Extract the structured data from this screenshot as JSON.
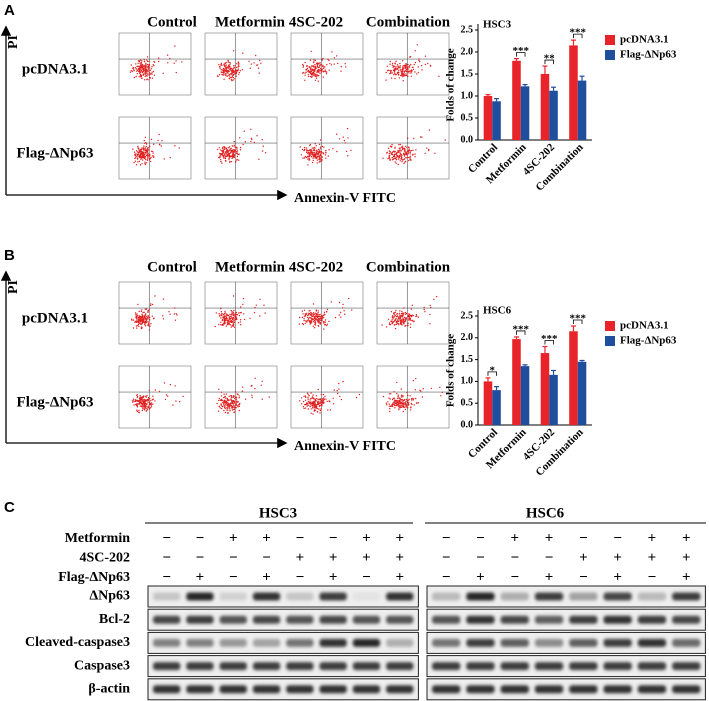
{
  "panels": [
    {
      "label": "A",
      "columns": [
        "Control",
        "Metformin",
        "4SC-202",
        "Combination"
      ],
      "rows": [
        "pcDNA3.1",
        "Flag-ΔNp63"
      ],
      "y_axis": "PI",
      "x_axis": "Annexin-V FITC"
    },
    {
      "label": "B",
      "columns": [
        "Control",
        "Metformin",
        "4SC-202",
        "Combination"
      ],
      "rows": [
        "pcDNA3.1",
        "Flag-ΔNp63"
      ],
      "y_axis": "PI",
      "x_axis": "Annexin-V FITC"
    }
  ],
  "chart_data": [
    {
      "type": "bar",
      "title": "HSC3",
      "ylabel": "Folds of change",
      "categories": [
        "Control",
        "Metformin",
        "4SC-202",
        "Combination"
      ],
      "series": [
        {
          "name": "pcDNA3.1",
          "color": "#e8242a",
          "values": [
            1.0,
            1.8,
            1.5,
            2.15
          ],
          "errors": [
            0.03,
            0.05,
            0.18,
            0.12
          ]
        },
        {
          "name": "Flag-ΔNp63",
          "color": "#1f4e9c",
          "values": [
            0.88,
            1.22,
            1.12,
            1.35
          ],
          "errors": [
            0.06,
            0.04,
            0.08,
            0.1
          ]
        }
      ],
      "annotations": [
        null,
        "***",
        "**",
        "***"
      ],
      "ylim": [
        0,
        2.5
      ],
      "yticks": [
        {
          "value": 0,
          "label": "0.0"
        },
        0.5,
        {
          "value": 1,
          "label": "1.0"
        },
        1.5,
        {
          "value": 2,
          "label": "2.0"
        },
        2.5
      ]
    },
    {
      "type": "bar",
      "title": "HSC6",
      "ylabel": "Folds of change",
      "categories": [
        "Control",
        "Metformin",
        "4SC-202",
        "Combination"
      ],
      "series": [
        {
          "name": "pcDNA3.1",
          "color": "#e8242a",
          "values": [
            1.0,
            1.97,
            1.65,
            2.15
          ],
          "errors": [
            0.08,
            0.05,
            0.15,
            0.12
          ]
        },
        {
          "name": "Flag-ΔNp63",
          "color": "#1f4e9c",
          "values": [
            0.8,
            1.35,
            1.15,
            1.45
          ],
          "errors": [
            0.08,
            0.03,
            0.1,
            0.03
          ]
        }
      ],
      "annotations": [
        "*",
        "***",
        "***",
        "***"
      ],
      "ylim": [
        0,
        2.5
      ],
      "yticks": [
        {
          "value": 0,
          "label": "0.0"
        },
        0.5,
        {
          "value": 1,
          "label": "1.0"
        },
        1.5,
        {
          "value": 2,
          "label": "2.0"
        },
        2.5
      ]
    }
  ],
  "western": {
    "label": "C",
    "cell_lines": [
      "HSC3",
      "HSC6"
    ],
    "treatments": [
      {
        "name": "Metformin",
        "signs": [
          "−",
          "−",
          "+",
          "+",
          "−",
          "−",
          "+",
          "+"
        ]
      },
      {
        "name": "4SC-202",
        "signs": [
          "−",
          "−",
          "−",
          "−",
          "+",
          "+",
          "+",
          "+"
        ]
      },
      {
        "name": "Flag-ΔNp63",
        "signs": [
          "−",
          "+",
          "−",
          "+",
          "−",
          "+",
          "−",
          "+"
        ]
      }
    ],
    "blots": [
      "ΔNp63",
      "Bcl-2",
      "Cleaved-caspase3",
      "Caspase3",
      "β-actin"
    ]
  }
}
